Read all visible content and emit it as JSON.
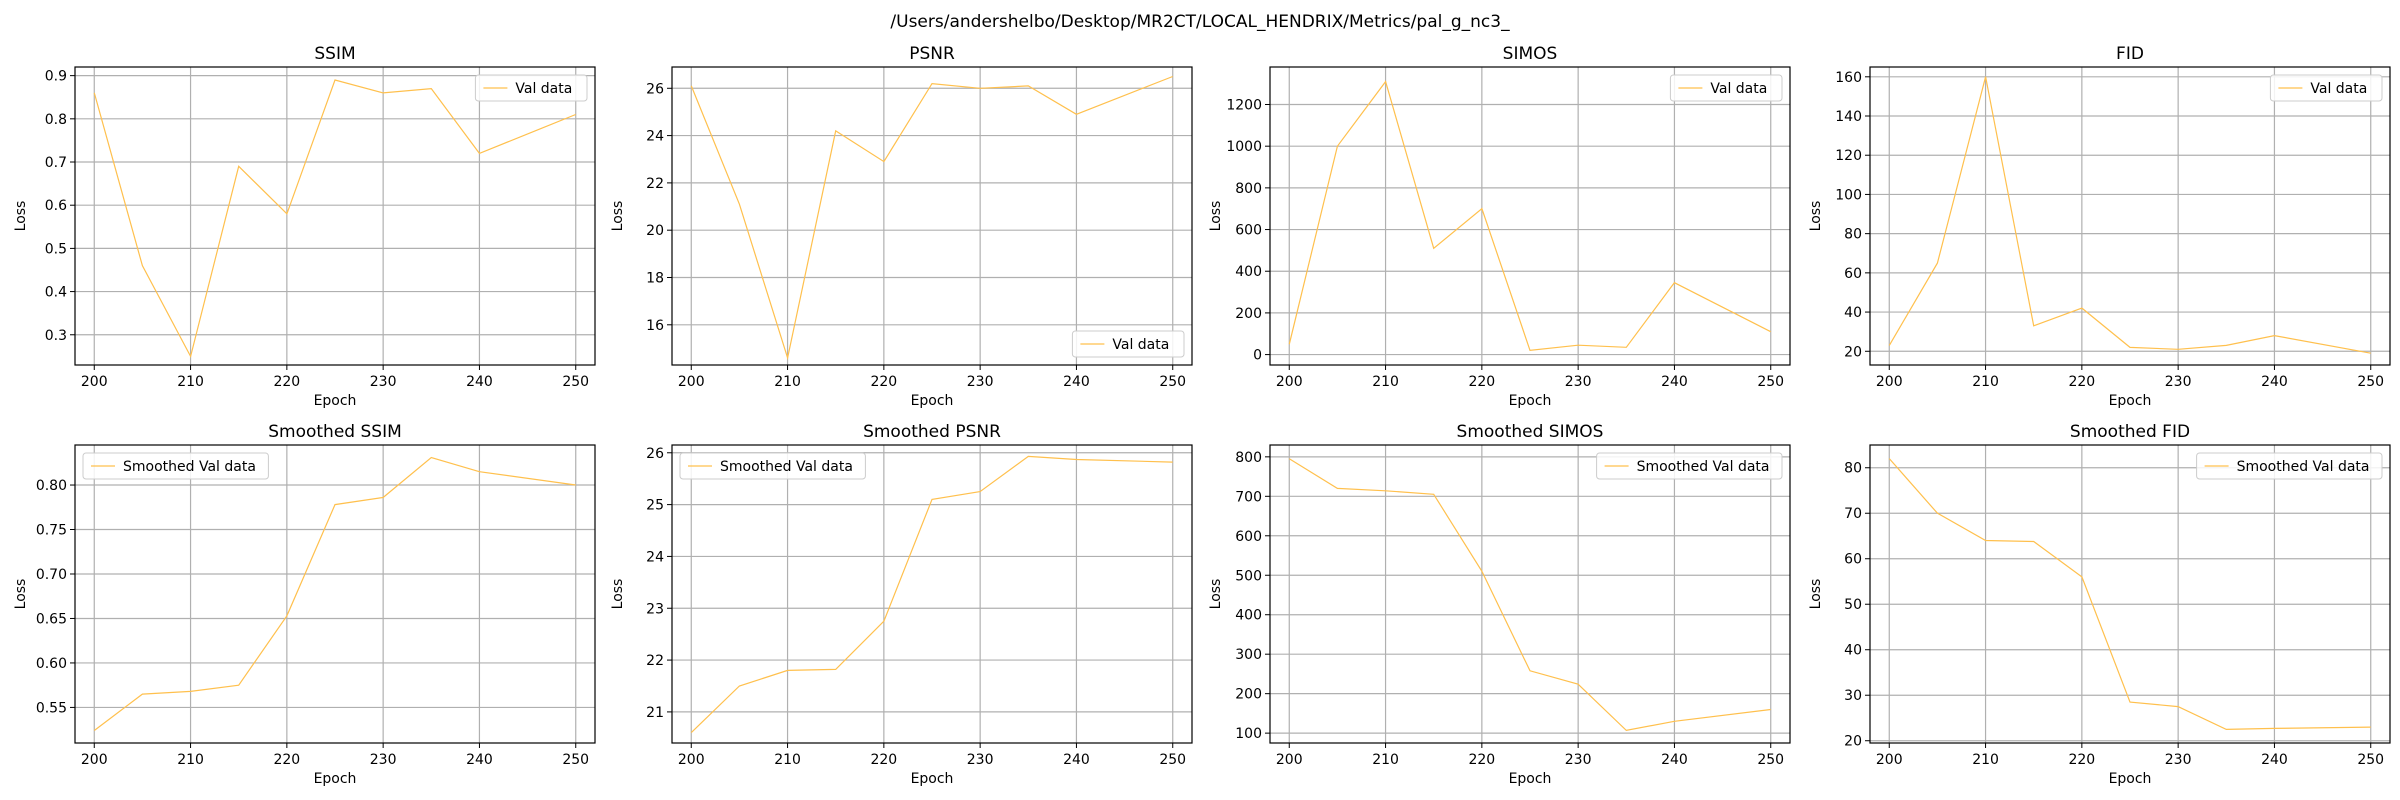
{
  "figure_title": "/Users/andershelbo/Desktop/MR2CT/LOCAL_HENDRIX/Metrics/pal_g_nc3_",
  "line_color": "#ffc04d",
  "chart_data": [
    {
      "type": "line",
      "title": "SSIM",
      "xlabel": "Epoch",
      "ylabel": "Loss",
      "xlim": [
        198,
        252
      ],
      "ylim": [
        0.23,
        0.92
      ],
      "grid": true,
      "legend_placement": "top-right",
      "xticks": [
        200,
        210,
        220,
        230,
        240,
        250
      ],
      "yticks": [
        0.3,
        0.4,
        0.5,
        0.6,
        0.7,
        0.8,
        0.9
      ],
      "ytick_labels": [
        "0.3",
        "0.4",
        "0.5",
        "0.6",
        "0.7",
        "0.8",
        "0.9"
      ],
      "series": [
        {
          "name": "Val data",
          "x": [
            200,
            205,
            210,
            215,
            220,
            225,
            230,
            235,
            240,
            250
          ],
          "y": [
            0.86,
            0.46,
            0.25,
            0.69,
            0.58,
            0.89,
            0.86,
            0.87,
            0.72,
            0.81
          ]
        }
      ]
    },
    {
      "type": "line",
      "title": "PSNR",
      "xlabel": "Epoch",
      "ylabel": "Loss",
      "xlim": [
        198,
        252
      ],
      "ylim": [
        14.3,
        26.9
      ],
      "grid": true,
      "legend_placement": "bottom-right",
      "xticks": [
        200,
        210,
        220,
        230,
        240,
        250
      ],
      "yticks": [
        16,
        18,
        20,
        22,
        24,
        26
      ],
      "ytick_labels": [
        "16",
        "18",
        "20",
        "22",
        "24",
        "26"
      ],
      "series": [
        {
          "name": "Val data",
          "x": [
            200,
            205,
            210,
            215,
            220,
            225,
            230,
            235,
            240,
            250
          ],
          "y": [
            26.1,
            21.1,
            14.6,
            24.2,
            22.9,
            26.2,
            26.0,
            26.1,
            24.9,
            26.5
          ]
        }
      ]
    },
    {
      "type": "line",
      "title": "SIMOS",
      "xlabel": "Epoch",
      "ylabel": "Loss",
      "xlim": [
        198,
        252
      ],
      "ylim": [
        -50,
        1380
      ],
      "grid": true,
      "legend_placement": "top-right",
      "xticks": [
        200,
        210,
        220,
        230,
        240,
        250
      ],
      "yticks": [
        0,
        200,
        400,
        600,
        800,
        1000,
        1200
      ],
      "ytick_labels": [
        "0",
        "200",
        "400",
        "600",
        "800",
        "1000",
        "1200"
      ],
      "series": [
        {
          "name": "Val data",
          "x": [
            200,
            205,
            210,
            215,
            220,
            225,
            230,
            235,
            240,
            250
          ],
          "y": [
            50,
            1000,
            1310,
            510,
            700,
            20,
            45,
            35,
            345,
            110
          ]
        }
      ]
    },
    {
      "type": "line",
      "title": "FID",
      "xlabel": "Epoch",
      "ylabel": "Loss",
      "xlim": [
        198,
        252
      ],
      "ylim": [
        13,
        165
      ],
      "grid": true,
      "legend_placement": "top-right",
      "xticks": [
        200,
        210,
        220,
        230,
        240,
        250
      ],
      "yticks": [
        20,
        40,
        60,
        80,
        100,
        120,
        140,
        160
      ],
      "ytick_labels": [
        "20",
        "40",
        "60",
        "80",
        "100",
        "120",
        "140",
        "160"
      ],
      "series": [
        {
          "name": "Val data",
          "x": [
            200,
            205,
            210,
            215,
            220,
            225,
            230,
            235,
            240,
            250
          ],
          "y": [
            23,
            65,
            160,
            33,
            42,
            22,
            21,
            23,
            28,
            19
          ]
        }
      ]
    },
    {
      "type": "line",
      "title": "Smoothed SSIM",
      "xlabel": "Epoch",
      "ylabel": "Loss",
      "xlim": [
        198,
        252
      ],
      "ylim": [
        0.51,
        0.845
      ],
      "grid": true,
      "legend_placement": "top-left",
      "xticks": [
        200,
        210,
        220,
        230,
        240,
        250
      ],
      "yticks": [
        0.55,
        0.6,
        0.65,
        0.7,
        0.75,
        0.8
      ],
      "ytick_labels": [
        "0.55",
        "0.60",
        "0.65",
        "0.70",
        "0.75",
        "0.80"
      ],
      "series": [
        {
          "name": "Smoothed Val data",
          "x": [
            200,
            205,
            210,
            215,
            220,
            225,
            230,
            235,
            240,
            250
          ],
          "y": [
            0.524,
            0.565,
            0.568,
            0.575,
            0.653,
            0.778,
            0.786,
            0.831,
            0.815,
            0.8
          ]
        }
      ]
    },
    {
      "type": "line",
      "title": "Smoothed PSNR",
      "xlabel": "Epoch",
      "ylabel": "Loss",
      "xlim": [
        198,
        252
      ],
      "ylim": [
        20.4,
        26.15
      ],
      "grid": true,
      "legend_placement": "top-left",
      "xticks": [
        200,
        210,
        220,
        230,
        240,
        250
      ],
      "yticks": [
        21,
        22,
        23,
        24,
        25,
        26
      ],
      "ytick_labels": [
        "21",
        "22",
        "23",
        "24",
        "25",
        "26"
      ],
      "series": [
        {
          "name": "Smoothed Val data",
          "x": [
            200,
            205,
            210,
            215,
            220,
            225,
            230,
            235,
            240,
            250
          ],
          "y": [
            20.6,
            21.5,
            21.8,
            21.82,
            22.75,
            25.1,
            25.25,
            25.93,
            25.87,
            25.82
          ]
        }
      ]
    },
    {
      "type": "line",
      "title": "Smoothed SIMOS",
      "xlabel": "Epoch",
      "ylabel": "Loss",
      "xlim": [
        198,
        252
      ],
      "ylim": [
        75,
        830
      ],
      "grid": true,
      "legend_placement": "top-right",
      "xticks": [
        200,
        210,
        220,
        230,
        240,
        250
      ],
      "yticks": [
        100,
        200,
        300,
        400,
        500,
        600,
        700,
        800
      ],
      "ytick_labels": [
        "100",
        "200",
        "300",
        "400",
        "500",
        "600",
        "700",
        "800"
      ],
      "series": [
        {
          "name": "Smoothed Val data",
          "x": [
            200,
            205,
            210,
            215,
            220,
            225,
            230,
            235,
            240,
            250
          ],
          "y": [
            795,
            720,
            714,
            705,
            510,
            258,
            224,
            107,
            130,
            160
          ]
        }
      ]
    },
    {
      "type": "line",
      "title": "Smoothed FID",
      "xlabel": "Epoch",
      "ylabel": "Loss",
      "xlim": [
        198,
        252
      ],
      "ylim": [
        19.5,
        85
      ],
      "grid": true,
      "legend_placement": "top-right",
      "xticks": [
        200,
        210,
        220,
        230,
        240,
        250
      ],
      "yticks": [
        20,
        30,
        40,
        50,
        60,
        70,
        80
      ],
      "ytick_labels": [
        "20",
        "30",
        "40",
        "50",
        "60",
        "70",
        "80"
      ],
      "series": [
        {
          "name": "Smoothed Val data",
          "x": [
            200,
            205,
            210,
            215,
            220,
            225,
            230,
            235,
            240,
            250
          ],
          "y": [
            82,
            70,
            64,
            63.8,
            56,
            28.5,
            27.5,
            22.5,
            22.7,
            23.0
          ]
        }
      ]
    }
  ]
}
